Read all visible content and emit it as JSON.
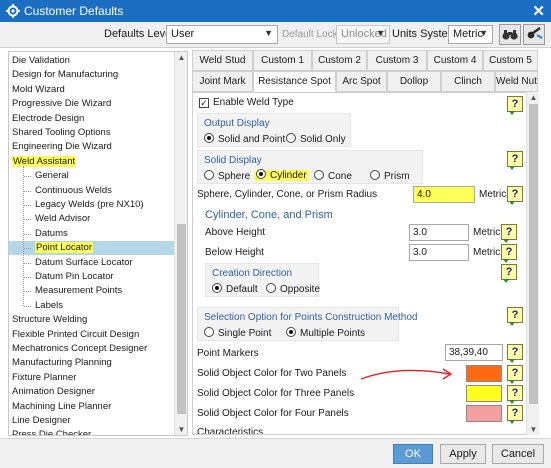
{
  "window": {
    "title": "Customer Defaults",
    "close": "✕"
  },
  "topbar": {
    "defaults_level_label": "Defaults Level",
    "defaults_level_value": "User",
    "default_lock_state_label": "Default Lock State",
    "default_lock_state_value": "Unlocked",
    "units_system_label": "Units System",
    "units_system_value": "Metric"
  },
  "tree": [
    {
      "label": "Die Validation",
      "level": 0
    },
    {
      "label": "Design for Manufacturing",
      "level": 0
    },
    {
      "label": "Mold Wizard",
      "level": 0
    },
    {
      "label": "Progressive Die Wizard",
      "level": 0
    },
    {
      "label": "Electrode Design",
      "level": 0
    },
    {
      "label": "Shared Tooling Options",
      "level": 0
    },
    {
      "label": "Engineering Die Wizard",
      "level": 0
    },
    {
      "label": "Weld Assistant",
      "level": 0,
      "highlight": true
    },
    {
      "label": "General",
      "level": 1
    },
    {
      "label": "Continuous Welds",
      "level": 1
    },
    {
      "label": "Legacy Welds (pre NX10)",
      "level": 1
    },
    {
      "label": "Weld Advisor",
      "level": 1
    },
    {
      "label": "Datums",
      "level": 1
    },
    {
      "label": "Point Locator",
      "level": 1,
      "highlight": true,
      "selected": true
    },
    {
      "label": "Datum Surface Locator",
      "level": 1
    },
    {
      "label": "Datum Pin Locator",
      "level": 1
    },
    {
      "label": "Measurement Points",
      "level": 1
    },
    {
      "label": "Labels",
      "level": 1
    },
    {
      "label": "Structure Welding",
      "level": 0
    },
    {
      "label": "Flexible Printed Circuit Design",
      "level": 0
    },
    {
      "label": "Mechatronics Concept Designer",
      "level": 0
    },
    {
      "label": "Manufacturing Planning",
      "level": 0
    },
    {
      "label": "Fixture Planner",
      "level": 0
    },
    {
      "label": "Animation Designer",
      "level": 0
    },
    {
      "label": "Machining Line Planner",
      "level": 0
    },
    {
      "label": "Line Designer",
      "level": 0
    },
    {
      "label": "Press Die Checker",
      "level": 0
    }
  ],
  "tabs_row1": [
    "Weld Stud",
    "Custom 1",
    "Custom 2",
    "Custom 3",
    "Custom 4",
    "Custom 5"
  ],
  "tabs_row2": [
    "Joint Mark",
    "Resistance Spot",
    "Arc Spot",
    "Dollop",
    "Clinch",
    "Weld Nut"
  ],
  "active_tab": "Resistance Spot",
  "panel": {
    "enable_weld_type": "Enable Weld Type",
    "output_display_title": "Output Display",
    "output_solid_and_point": "Solid and Point",
    "output_solid_only": "Solid Only",
    "solid_display_title": "Solid Display",
    "solid_sphere": "Sphere",
    "solid_cylinder": "Cylinder",
    "solid_cone": "Cone",
    "solid_prism": "Prism",
    "radius_label": "Sphere, Cylinder, Cone, or Prism Radius",
    "radius_value": "4.0",
    "radius_unit": "Metric",
    "ccp_heading": "Cylinder, Cone, and Prism",
    "above_height_label": "Above Height",
    "above_height_value": "3.0",
    "above_height_unit": "Metric",
    "below_height_label": "Below Height",
    "below_height_value": "3.0",
    "below_height_unit": "Metric",
    "creation_direction_title": "Creation Direction",
    "creation_default": "Default",
    "creation_opposite": "Opposite",
    "selection_option_title": "Selection Option for Points Construction Method",
    "selection_single": "Single Point",
    "selection_multiple": "Multiple Points",
    "point_markers_label": "Point Markers",
    "point_markers_value": "38,39,40",
    "two_panels_label": "Solid Object Color for Two Panels",
    "two_panels_color": "#ff6a13",
    "three_panels_label": "Solid Object Color for Three Panels",
    "three_panels_color": "#ffff1e",
    "four_panels_label": "Solid Object Color for Four Panels",
    "four_panels_color": "#f5a0a0",
    "characteristics_label": "Characteristics",
    "help_glyph": "?"
  },
  "buttons": {
    "ok": "OK",
    "apply": "Apply",
    "cancel": "Cancel"
  },
  "colors": {
    "title_bar": "#1b6ec2",
    "highlight": "#ffff5a",
    "selected_row": "#b4d7e8",
    "annotation_arrow": "#e02020"
  }
}
